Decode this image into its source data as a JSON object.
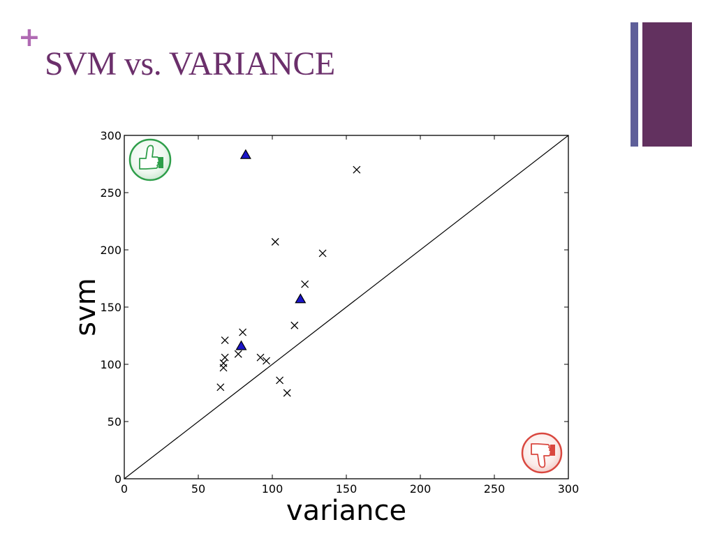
{
  "slide": {
    "plus_symbol": "+",
    "title": "SVM vs. VARIANCE"
  },
  "colors": {
    "title": "#6b2f6b",
    "plus": "#b06ab3",
    "deco_thin": "#5e5f99",
    "deco_thick": "#62315f",
    "triangle_fill": "#1a14c8",
    "thumbs_up": "#2e9e4a",
    "thumbs_down": "#d9473f"
  },
  "icons": {
    "top_left": "thumbs-up-icon",
    "bottom_right": "thumbs-down-icon"
  },
  "chart_data": {
    "type": "scatter",
    "title": "",
    "xlabel": "variance",
    "ylabel": "svm",
    "xlim": [
      0,
      300
    ],
    "ylim": [
      0,
      300
    ],
    "xticks": [
      0,
      50,
      100,
      150,
      200,
      250,
      300
    ],
    "yticks": [
      0,
      50,
      100,
      150,
      200,
      250,
      300
    ],
    "grid": false,
    "diagonal": [
      [
        0,
        0
      ],
      [
        300,
        300
      ]
    ],
    "series": [
      {
        "marker": "x",
        "points": [
          [
            157,
            270
          ],
          [
            102,
            207
          ],
          [
            134,
            197
          ],
          [
            122,
            170
          ],
          [
            115,
            134
          ],
          [
            80,
            128
          ],
          [
            68,
            121
          ],
          [
            77,
            109
          ],
          [
            68,
            106
          ],
          [
            92,
            106
          ],
          [
            96,
            103
          ],
          [
            67,
            101
          ],
          [
            67,
            97
          ],
          [
            105,
            86
          ],
          [
            65,
            80
          ],
          [
            110,
            75
          ]
        ]
      },
      {
        "marker": "triangle",
        "points": [
          [
            82,
            283
          ],
          [
            119,
            157
          ],
          [
            79,
            116
          ]
        ]
      }
    ]
  }
}
